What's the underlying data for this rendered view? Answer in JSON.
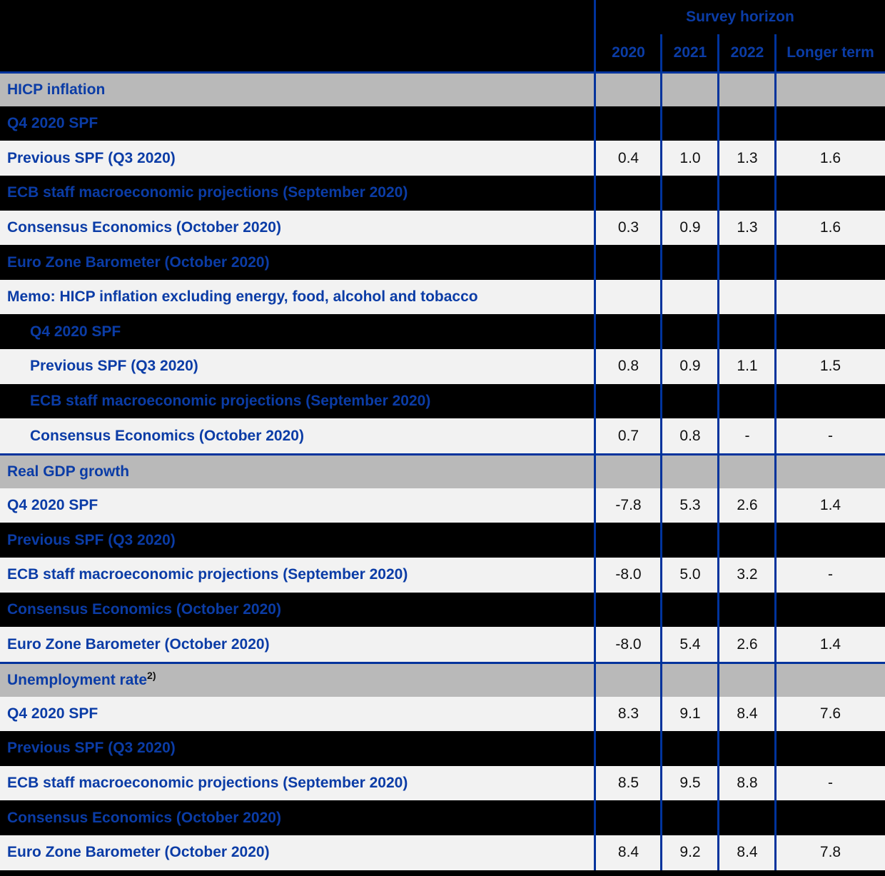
{
  "header": {
    "group_label": "Survey horizon",
    "columns": [
      "2020",
      "2021",
      "2022",
      "Longer term"
    ]
  },
  "colors": {
    "label_blue": "#0b3ca6",
    "separator_blue": "#00339c",
    "section_gray": "#b9b9b9",
    "row_light": "#f2f2f2",
    "row_dark": "#000000",
    "value_text": "#111111"
  },
  "rows": [
    {
      "variant": "section",
      "label": "HICP inflation",
      "indent": false,
      "values": [
        "",
        "",
        "",
        ""
      ]
    },
    {
      "variant": "dark",
      "label": "Q4 2020 SPF",
      "indent": false,
      "values": [
        "",
        "",
        "",
        ""
      ]
    },
    {
      "variant": "light",
      "label": "Previous SPF (Q3 2020)",
      "indent": false,
      "values": [
        "0.4",
        "1.0",
        "1.3",
        "1.6"
      ]
    },
    {
      "variant": "dark",
      "label": "ECB staff macroeconomic projections (September 2020)",
      "indent": false,
      "values": [
        "",
        "",
        "",
        ""
      ]
    },
    {
      "variant": "light",
      "label": "Consensus Economics (October 2020)",
      "indent": false,
      "values": [
        "0.3",
        "0.9",
        "1.3",
        "1.6"
      ]
    },
    {
      "variant": "dark",
      "label": "Euro Zone Barometer (October 2020)",
      "indent": false,
      "values": [
        "",
        "",
        "",
        ""
      ]
    },
    {
      "variant": "light",
      "label": "Memo: HICP inflation excluding energy, food, alcohol and tobacco",
      "indent": false,
      "values": [
        "",
        "",
        "",
        ""
      ]
    },
    {
      "variant": "dark",
      "label": "Q4 2020 SPF",
      "indent": true,
      "values": [
        "",
        "",
        "",
        ""
      ]
    },
    {
      "variant": "light",
      "label": "Previous SPF (Q3 2020)",
      "indent": true,
      "values": [
        "0.8",
        "0.9",
        "1.1",
        "1.5"
      ]
    },
    {
      "variant": "dark",
      "label": "ECB staff macroeconomic projections (September 2020)",
      "indent": true,
      "values": [
        "",
        "",
        "",
        ""
      ]
    },
    {
      "variant": "light",
      "label": "Consensus Economics (October 2020)",
      "indent": true,
      "values": [
        "0.7",
        "0.8",
        "-",
        "-"
      ]
    },
    {
      "variant": "section",
      "label": "Real GDP growth",
      "indent": false,
      "values": [
        "",
        "",
        "",
        ""
      ]
    },
    {
      "variant": "light",
      "label": "Q4 2020 SPF",
      "indent": false,
      "values": [
        "-7.8",
        "5.3",
        "2.6",
        "1.4"
      ]
    },
    {
      "variant": "dark",
      "label": "Previous SPF (Q3 2020)",
      "indent": false,
      "values": [
        "",
        "",
        "",
        ""
      ]
    },
    {
      "variant": "light",
      "label": "ECB staff macroeconomic projections (September 2020)",
      "indent": false,
      "values": [
        "-8.0",
        "5.0",
        "3.2",
        "-"
      ]
    },
    {
      "variant": "dark",
      "label": "Consensus Economics (October 2020)",
      "indent": false,
      "values": [
        "",
        "",
        "",
        ""
      ]
    },
    {
      "variant": "light",
      "label": "Euro Zone Barometer (October 2020)",
      "indent": false,
      "values": [
        "-8.0",
        "5.4",
        "2.6",
        "1.4"
      ]
    },
    {
      "variant": "section",
      "label": "Unemployment rate",
      "sup": "2)",
      "indent": false,
      "values": [
        "",
        "",
        "",
        ""
      ]
    },
    {
      "variant": "light",
      "label": "Q4 2020 SPF",
      "indent": false,
      "values": [
        "8.3",
        "9.1",
        "8.4",
        "7.6"
      ]
    },
    {
      "variant": "dark",
      "label": "Previous SPF (Q3 2020)",
      "indent": false,
      "values": [
        "",
        "",
        "",
        ""
      ]
    },
    {
      "variant": "light",
      "label": "ECB staff macroeconomic projections (September 2020)",
      "indent": false,
      "values": [
        "8.5",
        "9.5",
        "8.8",
        "-"
      ]
    },
    {
      "variant": "dark",
      "label": "Consensus Economics (October 2020)",
      "indent": false,
      "values": [
        "",
        "",
        "",
        ""
      ]
    },
    {
      "variant": "light",
      "label": "Euro Zone Barometer (October 2020)",
      "indent": false,
      "values": [
        "8.4",
        "9.2",
        "8.4",
        "7.8"
      ]
    }
  ]
}
